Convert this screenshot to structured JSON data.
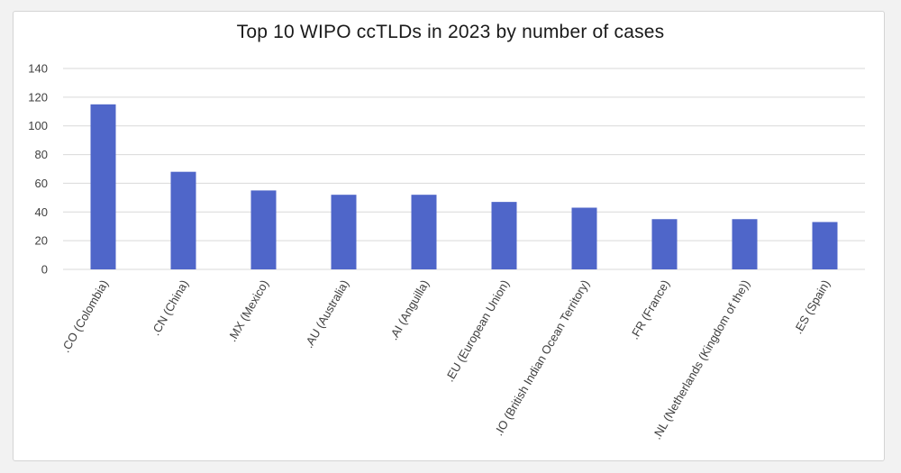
{
  "chart_data": {
    "type": "bar",
    "title": "Top 10 WIPO  ccTLDs in 2023 by number of cases",
    "xlabel": "",
    "ylabel": "",
    "ylim": [
      0,
      140
    ],
    "yticks": [
      0,
      20,
      40,
      60,
      80,
      100,
      120,
      140
    ],
    "grid": true,
    "legend": "none",
    "bar_color": "#4f66c9",
    "grid_color": "#d9d9d9",
    "categories": [
      ".CO (Colombia)",
      ".CN (China)",
      ".MX (Mexico)",
      ".AU (Australia)",
      ".AI (Anguilla)",
      ".EU (European Union)",
      ".IO (British Indian Ocean Territory)",
      ".FR (France)",
      ".NL (Netherlands (Kingdom of the))",
      ".ES (Spain)"
    ],
    "values": [
      115,
      68,
      55,
      52,
      52,
      47,
      43,
      35,
      35,
      33
    ]
  }
}
